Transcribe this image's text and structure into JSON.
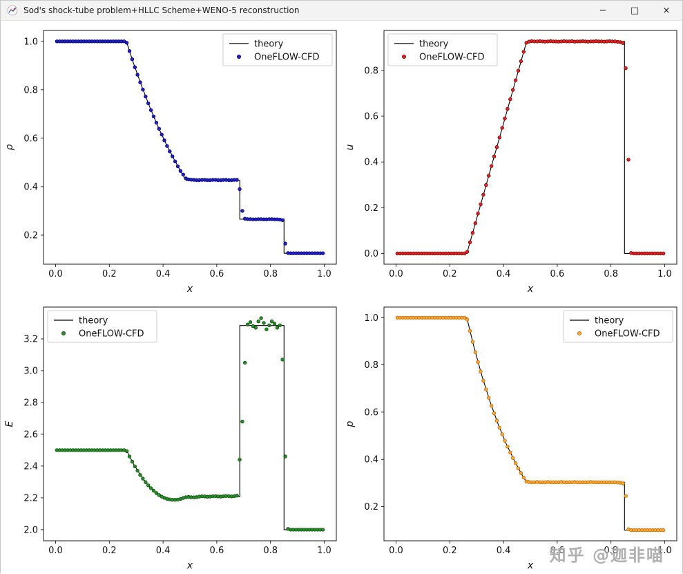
{
  "window": {
    "title": "Sod's shock-tube problem+HLLC Scheme+WENO-5 reconstruction",
    "minimize_glyph": "−",
    "maximize_glyph": "□",
    "close_glyph": "×"
  },
  "watermark": {
    "text": "知乎 @迦非喵"
  },
  "chart_data": {
    "type": "scatter",
    "layout": "2x2-panels",
    "xlabel": "x",
    "xlim": [
      -0.045,
      1.045
    ],
    "xticks": [
      0.0,
      0.2,
      0.4,
      0.6,
      0.8,
      1.0
    ],
    "xtick_labels": [
      "0.0",
      "0.2",
      "0.4",
      "0.6",
      "0.8",
      "1.0"
    ],
    "series_names": [
      "theory",
      "OneFLOW-CFD"
    ],
    "line_color": "#000000",
    "x_points": [
      0.005,
      0.015,
      0.025,
      0.035,
      0.045,
      0.055,
      0.065,
      0.075,
      0.085,
      0.095,
      0.105,
      0.115,
      0.125,
      0.135,
      0.145,
      0.155,
      0.165,
      0.175,
      0.185,
      0.195,
      0.205,
      0.215,
      0.225,
      0.235,
      0.245,
      0.255,
      0.265,
      0.275,
      0.285,
      0.295,
      0.305,
      0.315,
      0.325,
      0.335,
      0.345,
      0.355,
      0.365,
      0.375,
      0.385,
      0.395,
      0.405,
      0.415,
      0.425,
      0.435,
      0.445,
      0.455,
      0.465,
      0.475,
      0.485,
      0.495,
      0.505,
      0.515,
      0.525,
      0.535,
      0.545,
      0.555,
      0.565,
      0.575,
      0.585,
      0.595,
      0.605,
      0.615,
      0.625,
      0.635,
      0.645,
      0.655,
      0.665,
      0.675,
      0.685,
      0.695,
      0.705,
      0.715,
      0.725,
      0.735,
      0.745,
      0.755,
      0.765,
      0.775,
      0.785,
      0.795,
      0.805,
      0.815,
      0.825,
      0.835,
      0.845,
      0.855,
      0.865,
      0.875,
      0.885,
      0.895,
      0.905,
      0.915,
      0.925,
      0.935,
      0.945,
      0.955,
      0.965,
      0.975,
      0.985,
      0.995
    ],
    "panels": [
      {
        "id": "density",
        "ylabel": "ρ",
        "ylim": [
          0.08,
          1.045
        ],
        "yticks": [
          0.2,
          0.4,
          0.6,
          0.8,
          1.0
        ],
        "ytick_labels": [
          "0.2",
          "0.4",
          "0.6",
          "0.8",
          "1.0"
        ],
        "legend_loc": "upper-right",
        "marker_fill": "#2222cc",
        "marker_edge": "#000066",
        "theory_x": [
          0.0,
          0.2634,
          0.29,
          0.32,
          0.35,
          0.38,
          0.41,
          0.44,
          0.47,
          0.486,
          0.6855,
          0.6855,
          0.8504,
          0.8504,
          1.0
        ],
        "theory_y": [
          1.0,
          1.0,
          0.91,
          0.816,
          0.73,
          0.651,
          0.58,
          0.515,
          0.455,
          0.426,
          0.426,
          0.266,
          0.266,
          0.125,
          0.125
        ],
        "scatter_y": [
          1.0,
          1.0,
          1.0,
          1.0,
          1.0,
          1.0,
          1.0,
          1.0,
          1.0,
          1.0,
          1.0,
          1.0,
          1.0,
          1.0,
          1.0,
          1.0,
          1.0,
          1.0,
          1.0,
          1.0,
          1.0,
          1.0,
          1.0,
          1.0,
          1.0,
          1.0,
          0.994,
          0.96,
          0.926,
          0.893,
          0.862,
          0.831,
          0.801,
          0.772,
          0.744,
          0.716,
          0.69,
          0.664,
          0.639,
          0.615,
          0.591,
          0.568,
          0.546,
          0.525,
          0.504,
          0.484,
          0.465,
          0.45,
          0.434,
          0.43,
          0.429,
          0.428,
          0.427,
          0.427,
          0.428,
          0.428,
          0.427,
          0.427,
          0.428,
          0.428,
          0.427,
          0.427,
          0.428,
          0.428,
          0.427,
          0.427,
          0.428,
          0.428,
          0.39,
          0.3,
          0.268,
          0.266,
          0.266,
          0.265,
          0.265,
          0.266,
          0.266,
          0.265,
          0.265,
          0.266,
          0.266,
          0.265,
          0.265,
          0.264,
          0.262,
          0.165,
          0.126,
          0.125,
          0.125,
          0.125,
          0.125,
          0.125,
          0.125,
          0.125,
          0.125,
          0.125,
          0.125,
          0.125,
          0.125,
          0.125
        ]
      },
      {
        "id": "velocity",
        "ylabel": "u",
        "ylim": [
          -0.047,
          0.975
        ],
        "yticks": [
          0.0,
          0.2,
          0.4,
          0.6,
          0.8
        ],
        "ytick_labels": [
          "0.0",
          "0.2",
          "0.4",
          "0.6",
          "0.8"
        ],
        "legend_loc": "upper-left",
        "marker_fill": "#e02525",
        "marker_edge": "#7a0000",
        "theory_x": [
          0.0,
          0.2634,
          0.486,
          0.8504,
          0.8504,
          1.0
        ],
        "theory_y": [
          0.0,
          0.0,
          0.927,
          0.927,
          0.0,
          0.0
        ],
        "scatter_y": [
          0.0,
          0.0,
          0.0,
          0.0,
          0.0,
          0.0,
          0.0,
          0.0,
          0.0,
          0.0,
          0.0,
          0.0,
          0.0,
          0.0,
          0.0,
          0.0,
          0.0,
          0.0,
          0.0,
          0.0,
          0.0,
          0.0,
          0.0,
          0.0,
          0.0,
          0.0,
          0.007,
          0.049,
          0.09,
          0.132,
          0.174,
          0.215,
          0.257,
          0.299,
          0.34,
          0.382,
          0.424,
          0.465,
          0.507,
          0.549,
          0.59,
          0.632,
          0.674,
          0.715,
          0.757,
          0.799,
          0.84,
          0.882,
          0.921,
          0.926,
          0.928,
          0.927,
          0.927,
          0.928,
          0.927,
          0.926,
          0.927,
          0.928,
          0.927,
          0.927,
          0.926,
          0.927,
          0.928,
          0.927,
          0.927,
          0.928,
          0.926,
          0.927,
          0.927,
          0.928,
          0.927,
          0.926,
          0.927,
          0.927,
          0.928,
          0.927,
          0.927,
          0.926,
          0.927,
          0.928,
          0.927,
          0.927,
          0.925,
          0.924,
          0.92,
          0.81,
          0.41,
          0.002,
          0.0,
          0.0,
          0.0,
          0.0,
          0.0,
          0.0,
          0.0,
          0.0,
          0.0,
          0.0,
          0.0,
          0.0
        ]
      },
      {
        "id": "energy",
        "ylabel": "E",
        "ylim": [
          1.93,
          3.4
        ],
        "yticks": [
          2.0,
          2.2,
          2.4,
          2.6,
          2.8,
          3.0,
          3.2
        ],
        "ytick_labels": [
          "2.0",
          "2.2",
          "2.4",
          "2.6",
          "2.8",
          "3.0",
          "3.2"
        ],
        "legend_loc": "upper-left",
        "marker_fill": "#2a8f2a",
        "marker_edge": "#0a4f0a",
        "theory_x": [
          0.0,
          0.2634,
          0.29,
          0.32,
          0.35,
          0.38,
          0.41,
          0.44,
          0.47,
          0.486,
          0.6855,
          0.6855,
          0.8504,
          0.8504,
          1.0
        ],
        "theory_y": [
          2.5,
          2.5,
          2.413,
          2.332,
          2.269,
          2.224,
          2.197,
          2.187,
          2.196,
          2.208,
          2.208,
          3.284,
          3.284,
          2.0,
          2.0
        ],
        "scatter_y": [
          2.5,
          2.5,
          2.5,
          2.5,
          2.5,
          2.5,
          2.5,
          2.5,
          2.5,
          2.5,
          2.5,
          2.5,
          2.5,
          2.5,
          2.5,
          2.5,
          2.5,
          2.5,
          2.5,
          2.5,
          2.5,
          2.5,
          2.5,
          2.5,
          2.5,
          2.5,
          2.494,
          2.46,
          2.428,
          2.398,
          2.371,
          2.344,
          2.321,
          2.299,
          2.279,
          2.261,
          2.245,
          2.23,
          2.218,
          2.208,
          2.2,
          2.194,
          2.19,
          2.188,
          2.188,
          2.189,
          2.193,
          2.199,
          2.204,
          2.206,
          2.204,
          2.203,
          2.205,
          2.208,
          2.21,
          2.209,
          2.207,
          2.208,
          2.21,
          2.211,
          2.209,
          2.208,
          2.21,
          2.212,
          2.211,
          2.209,
          2.211,
          2.214,
          2.44,
          2.68,
          3.05,
          3.29,
          3.305,
          3.28,
          3.27,
          3.31,
          3.33,
          3.3,
          3.26,
          3.285,
          3.31,
          3.295,
          3.27,
          3.285,
          3.07,
          2.46,
          2.005,
          2.0,
          2.0,
          2.0,
          2.0,
          2.0,
          2.0,
          2.0,
          2.0,
          2.0,
          2.0,
          2.0,
          2.0,
          2.0
        ]
      },
      {
        "id": "pressure",
        "ylabel": "p",
        "ylim": [
          0.055,
          1.045
        ],
        "yticks": [
          0.2,
          0.4,
          0.6,
          0.8,
          1.0
        ],
        "ytick_labels": [
          "0.2",
          "0.4",
          "0.6",
          "0.8",
          "1.0"
        ],
        "legend_loc": "upper-right",
        "marker_fill": "#ffa733",
        "marker_edge": "#b36b00",
        "theory_x": [
          0.0,
          0.2634,
          0.29,
          0.32,
          0.35,
          0.38,
          0.41,
          0.44,
          0.47,
          0.486,
          0.8504,
          0.8504,
          1.0
        ],
        "theory_y": [
          1.0,
          1.0,
          0.876,
          0.752,
          0.644,
          0.549,
          0.466,
          0.395,
          0.332,
          0.303,
          0.303,
          0.1,
          0.1
        ],
        "scatter_y": [
          1.0,
          1.0,
          1.0,
          1.0,
          1.0,
          1.0,
          1.0,
          1.0,
          1.0,
          1.0,
          1.0,
          1.0,
          1.0,
          1.0,
          1.0,
          1.0,
          1.0,
          1.0,
          1.0,
          1.0,
          1.0,
          1.0,
          1.0,
          1.0,
          1.0,
          1.0,
          0.992,
          0.944,
          0.898,
          0.854,
          0.812,
          0.772,
          0.733,
          0.696,
          0.661,
          0.627,
          0.595,
          0.564,
          0.534,
          0.506,
          0.479,
          0.454,
          0.429,
          0.406,
          0.384,
          0.362,
          0.342,
          0.323,
          0.306,
          0.304,
          0.303,
          0.303,
          0.304,
          0.303,
          0.303,
          0.303,
          0.304,
          0.303,
          0.303,
          0.303,
          0.303,
          0.304,
          0.303,
          0.303,
          0.303,
          0.303,
          0.304,
          0.303,
          0.303,
          0.303,
          0.303,
          0.303,
          0.304,
          0.303,
          0.303,
          0.303,
          0.303,
          0.303,
          0.303,
          0.303,
          0.303,
          0.303,
          0.302,
          0.301,
          0.298,
          0.245,
          0.104,
          0.1,
          0.1,
          0.1,
          0.1,
          0.1,
          0.1,
          0.1,
          0.1,
          0.1,
          0.1,
          0.1,
          0.1,
          0.1
        ]
      }
    ]
  }
}
